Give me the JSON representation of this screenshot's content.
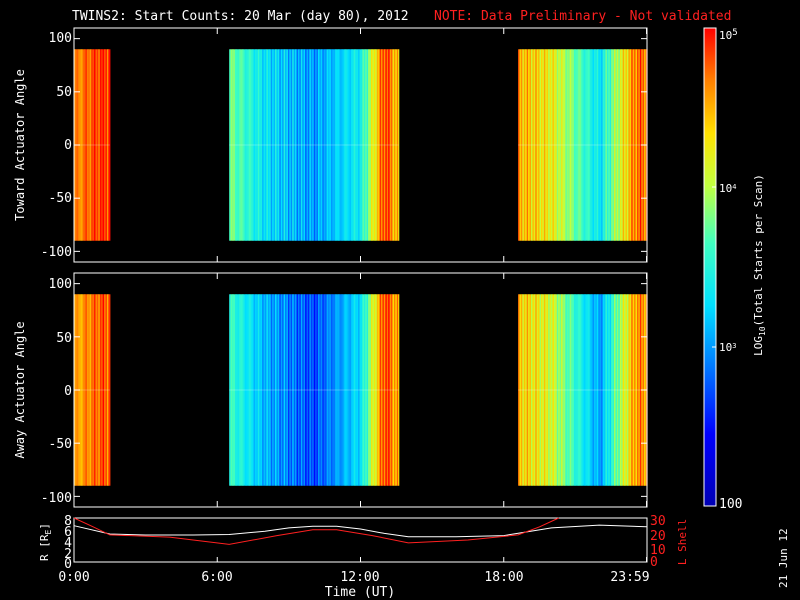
{
  "chart_data": [
    {
      "type": "heatmap",
      "title": "TWINS2: Start Counts: 20 Mar (day  80), 2012",
      "note": "NOTE: Data Preliminary - Not validated",
      "ylabel": "Toward Actuator Angle",
      "ylim": [
        -110,
        110
      ],
      "yticks": [
        "100",
        "50",
        "0",
        "-50",
        "-100"
      ],
      "xlim": [
        0,
        24
      ],
      "data_blocks_hours": [
        [
          0.0,
          1.5
        ],
        [
          6.5,
          13.6
        ],
        [
          18.6,
          24.0
        ]
      ],
      "intensity_profile_log10": [
        {
          "hour": 0.0,
          "value": 4.6
        },
        {
          "hour": 1.2,
          "value": 4.9
        },
        {
          "hour": 6.5,
          "value": 3.8
        },
        {
          "hour": 8.0,
          "value": 3.3
        },
        {
          "hour": 10.0,
          "value": 3.0
        },
        {
          "hour": 12.0,
          "value": 3.4
        },
        {
          "hour": 13.0,
          "value": 4.9
        },
        {
          "hour": 13.6,
          "value": 4.3
        },
        {
          "hour": 18.6,
          "value": 4.5
        },
        {
          "hour": 20.0,
          "value": 4.2
        },
        {
          "hour": 22.0,
          "value": 3.3
        },
        {
          "hour": 23.5,
          "value": 4.7
        }
      ]
    },
    {
      "type": "heatmap",
      "ylabel": "Away Actuator Angle",
      "ylim": [
        -110,
        110
      ],
      "yticks": [
        "100",
        "50",
        "0",
        "-50",
        "-100"
      ],
      "xlim": [
        0,
        24
      ],
      "data_blocks_hours": [
        [
          0.0,
          1.5
        ],
        [
          6.5,
          13.6
        ],
        [
          18.6,
          24.0
        ]
      ],
      "intensity_profile_log10": [
        {
          "hour": 0.0,
          "value": 4.5
        },
        {
          "hour": 1.2,
          "value": 4.8
        },
        {
          "hour": 6.5,
          "value": 3.6
        },
        {
          "hour": 8.0,
          "value": 3.1
        },
        {
          "hour": 10.0,
          "value": 2.7
        },
        {
          "hour": 12.0,
          "value": 3.3
        },
        {
          "hour": 13.0,
          "value": 4.9
        },
        {
          "hour": 13.6,
          "value": 4.4
        },
        {
          "hour": 18.6,
          "value": 4.4
        },
        {
          "hour": 20.0,
          "value": 4.1
        },
        {
          "hour": 22.0,
          "value": 3.0
        },
        {
          "hour": 23.5,
          "value": 4.6
        }
      ]
    },
    {
      "type": "line",
      "xlabel": "Time (UT)",
      "xticks": [
        "0:00",
        "6:00",
        "12:00",
        "18:00",
        "23:59"
      ],
      "xlim": [
        0,
        24
      ],
      "ylabel_left": "R [R",
      "ylabel_left_sub": "E",
      "ylabel_left_end": "]",
      "ylim_left": [
        0,
        8
      ],
      "yticks_left": [
        "8",
        "6",
        "4",
        "2",
        "0"
      ],
      "ylabel_right": "L Shell",
      "ylim_right": [
        0,
        30
      ],
      "yticks_right": [
        "30",
        "20",
        "10",
        "0"
      ],
      "series": [
        {
          "axis": "left",
          "color": "#ffffff",
          "points": [
            [
              0,
              6.6
            ],
            [
              1.5,
              5.1
            ],
            [
              3,
              4.9
            ],
            [
              5,
              4.9
            ],
            [
              6.5,
              5.0
            ],
            [
              8,
              5.6
            ],
            [
              9,
              6.2
            ],
            [
              10,
              6.5
            ],
            [
              11,
              6.5
            ],
            [
              12,
              6.0
            ],
            [
              13,
              5.2
            ],
            [
              14,
              4.6
            ],
            [
              16,
              4.6
            ],
            [
              18,
              4.8
            ],
            [
              19,
              5.5
            ],
            [
              20,
              6.2
            ],
            [
              22,
              6.7
            ],
            [
              23.98,
              6.4
            ]
          ]
        },
        {
          "axis": "right",
          "color": "#ff2020",
          "points": [
            [
              0,
              30
            ],
            [
              0.8,
              24
            ],
            [
              1.5,
              18.5
            ],
            [
              4,
              17
            ],
            [
              6.5,
              12
            ],
            [
              8.5,
              18
            ],
            [
              10,
              22
            ],
            [
              11,
              22
            ],
            [
              12.5,
              18
            ],
            [
              14,
              13
            ],
            [
              16.5,
              15
            ],
            [
              18.6,
              18.5
            ],
            [
              19.5,
              24
            ],
            [
              20.3,
              30
            ]
          ]
        }
      ]
    }
  ],
  "colorbar": {
    "min_label": "100",
    "mid_label_base": "10",
    "mid_label_exp3": "3",
    "mid_label_exp4": "4",
    "max_label_base": "10",
    "max_label_exp": "5",
    "label_prefix": "LOG",
    "label_sub": "10",
    "label_suffix": "(Total Starts per Scan)",
    "log_range": [
      2,
      5
    ]
  },
  "datestamp": "21 Jun 12"
}
